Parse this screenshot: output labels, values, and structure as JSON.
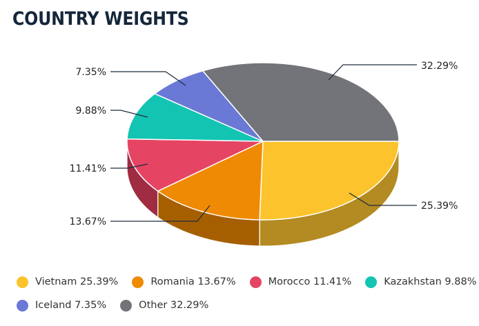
{
  "chart_data": {
    "type": "pie",
    "title": "COUNTRY WEIGHTS",
    "style": "3d",
    "legend_position": "bottom",
    "slices": [
      {
        "name": "Vietnam",
        "value": 25.39,
        "label": "25.39%",
        "legend": "Vietnam 25.39%",
        "color": "#fcc32c",
        "side": "#b38b22"
      },
      {
        "name": "Romania",
        "value": 13.67,
        "label": "13.67%",
        "legend": "Romania 13.67%",
        "color": "#ef8a04",
        "side": "#a65f00"
      },
      {
        "name": "Morocco",
        "value": 11.41,
        "label": "11.41%",
        "legend": "Morocco 11.41%",
        "color": "#e54463",
        "side": "#a02c42"
      },
      {
        "name": "Kazakhstan",
        "value": 9.88,
        "label": "9.88%",
        "legend": "Kazakhstan 9.88%",
        "color": "#14c4b3",
        "side": "#0e8a7e"
      },
      {
        "name": "Iceland",
        "value": 7.35,
        "label": "7.35%",
        "legend": "Iceland 7.35%",
        "color": "#6a79d6",
        "side": "#4a5596"
      },
      {
        "name": "Other",
        "value": 32.29,
        "label": "32.29%",
        "legend": "Other 32.29%",
        "color": "#737479",
        "side": "#505155"
      }
    ]
  }
}
